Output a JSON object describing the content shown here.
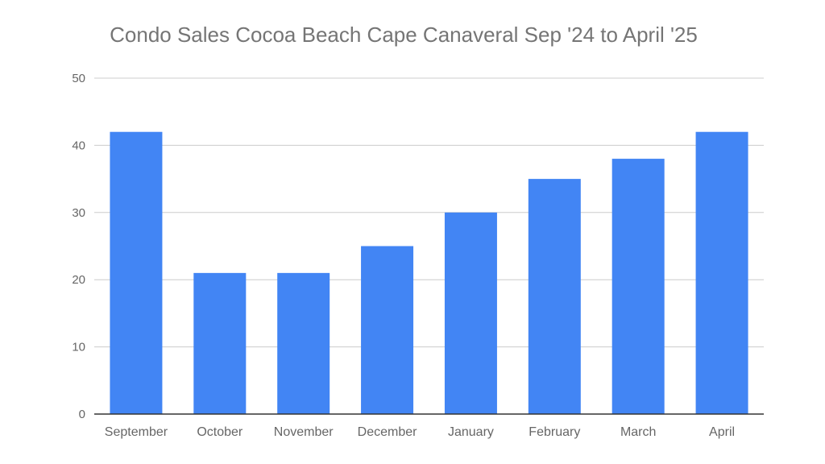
{
  "chart_data": {
    "type": "bar",
    "title": "Condo Sales Cocoa Beach Cape Canaveral Sep '24 to April '25",
    "xlabel": "",
    "ylabel": "",
    "categories": [
      "September",
      "October",
      "November",
      "December",
      "January",
      "February",
      "March",
      "April"
    ],
    "values": [
      42,
      21,
      21,
      25,
      30,
      35,
      38,
      42
    ],
    "ylim": [
      0,
      50
    ],
    "yticks": [
      0,
      10,
      20,
      30,
      40,
      50
    ],
    "grid": true,
    "legend": "none",
    "bar_color": "#4285f4",
    "grid_color": "#cccccc",
    "axis_color": "#333333",
    "text_color": "#666666"
  }
}
